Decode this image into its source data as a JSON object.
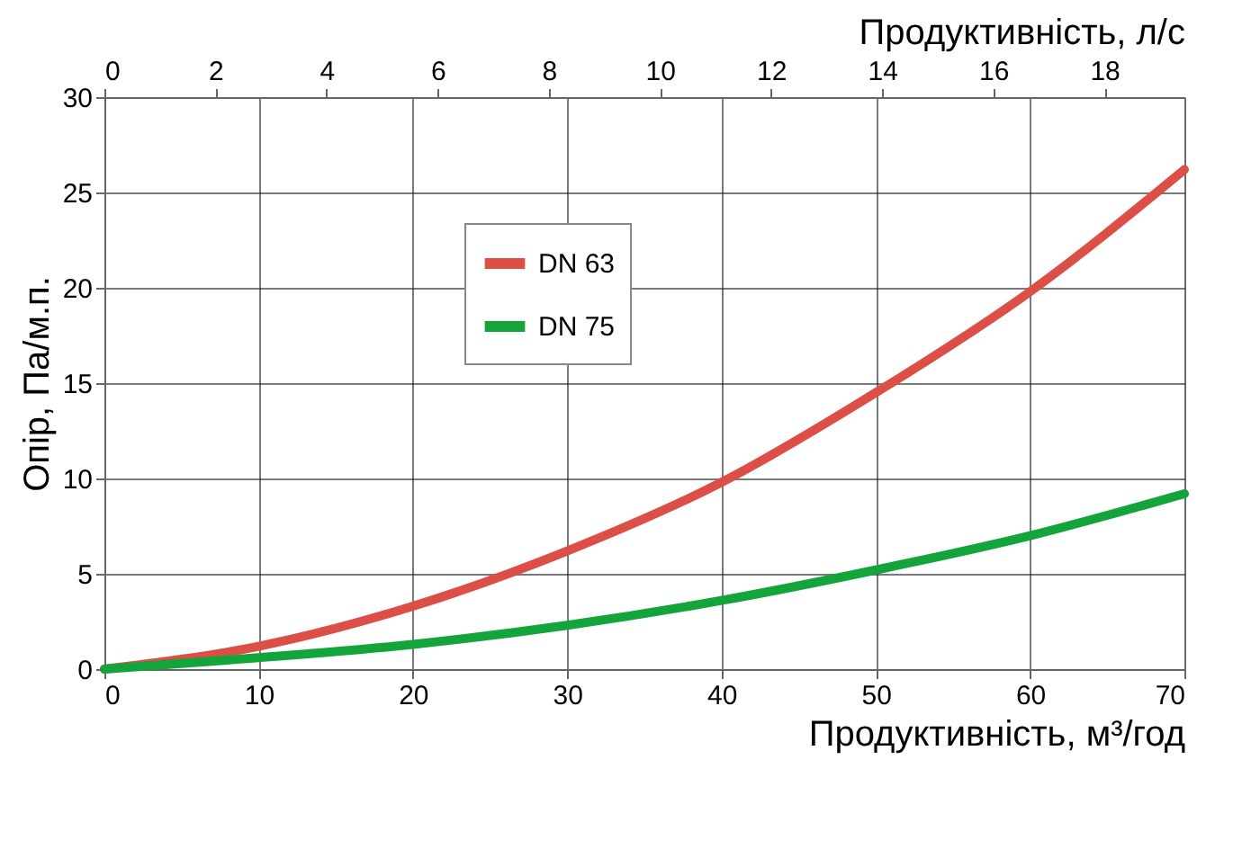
{
  "chart_data": {
    "type": "line",
    "xlabel": "Продуктивність, м³/год",
    "ylabel": "Опір, Па/м.п.",
    "x2label": "Продуктивність, л/с",
    "x": [
      0,
      10,
      20,
      30,
      40,
      50,
      60,
      70
    ],
    "series": [
      {
        "name": "DN 63",
        "color": "#dc4f47",
        "values": [
          0,
          1.2,
          3.3,
          6.2,
          9.8,
          14.5,
          19.8,
          26.2
        ]
      },
      {
        "name": "DN 75",
        "color": "#14a43c",
        "values": [
          0,
          0.6,
          1.3,
          2.3,
          3.6,
          5.2,
          7.0,
          9.2
        ]
      }
    ],
    "xlim": [
      0,
      70
    ],
    "xticks": [
      0,
      10,
      20,
      30,
      40,
      50,
      60,
      70
    ],
    "ylim": [
      0,
      30
    ],
    "yticks": [
      0,
      5,
      10,
      15,
      20,
      25,
      30
    ],
    "x2lim": [
      0,
      19.44
    ],
    "x2ticks": [
      0,
      2,
      4,
      6,
      8,
      10,
      12,
      14,
      16,
      18
    ],
    "grid": true,
    "legend": "top left",
    "marker": "none",
    "line_style": "solid"
  }
}
